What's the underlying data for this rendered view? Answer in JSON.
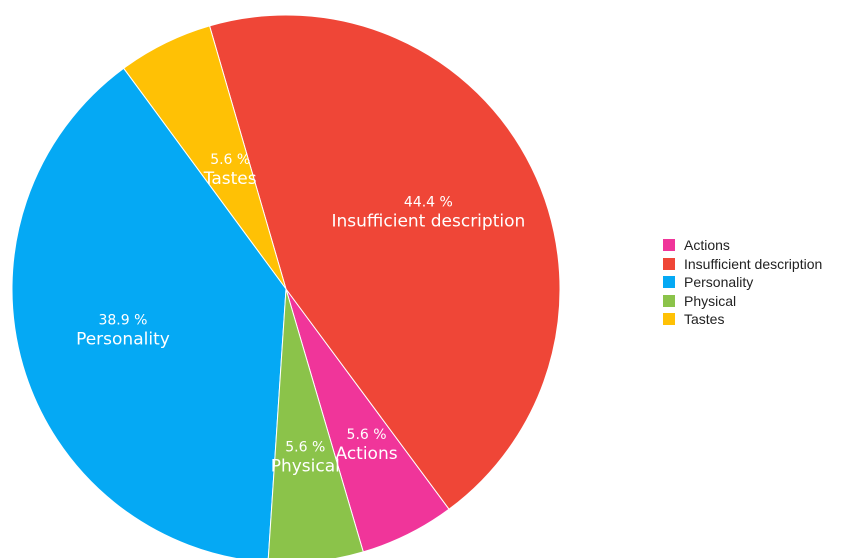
{
  "chart_data": {
    "type": "pie",
    "slices": [
      {
        "label": "Actions",
        "value": 5.6,
        "value_label": "5.6 %",
        "color": "#F0359A"
      },
      {
        "label": "Insufficient description",
        "value": 44.4,
        "value_label": "44.4 %",
        "color": "#EF4637"
      },
      {
        "label": "Personality",
        "value": 38.9,
        "value_label": "38.9 %",
        "color": "#05A9F4"
      },
      {
        "label": "Physical",
        "value": 5.6,
        "value_label": "5.6 %",
        "color": "#8BC34A"
      },
      {
        "label": "Tastes",
        "value": 5.6,
        "value_label": "5.6 %",
        "color": "#FFC105"
      }
    ],
    "legend_position": "right",
    "label_color": "#FFFFFF"
  }
}
